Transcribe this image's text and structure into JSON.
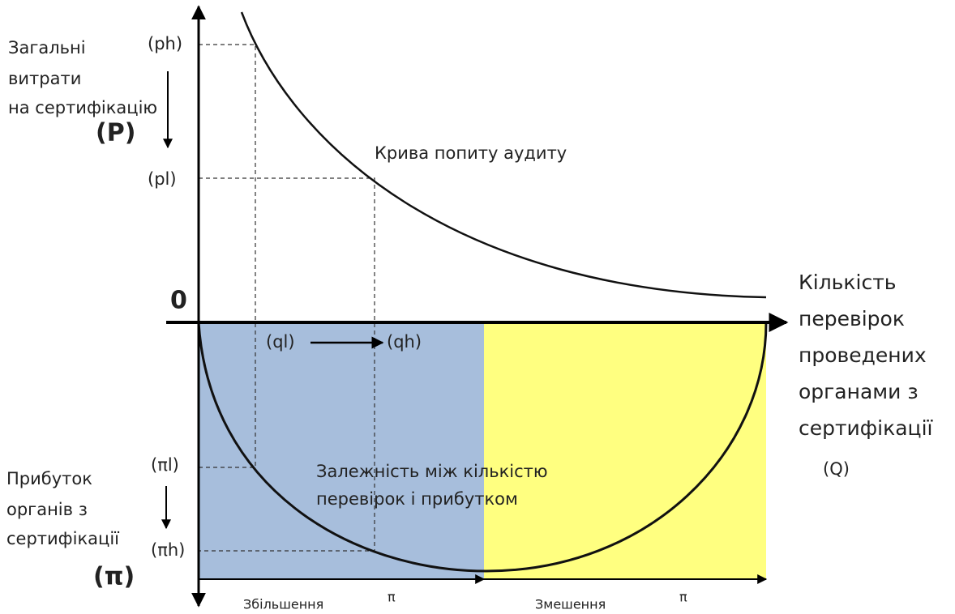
{
  "price_axis": {
    "label": [
      "Загальні",
      "витрати",
      "на сертифікацію"
    ],
    "symbol": "(P)",
    "high": "(ph)",
    "low": "(pl)"
  },
  "origin": "0",
  "quantity_axis": {
    "label": [
      "Кількість",
      "перевірок",
      "проведених",
      "органами з",
      "сертифікації"
    ],
    "symbol": "(Q)",
    "low": "(ql)",
    "high": "(qh)"
  },
  "profit_axis": {
    "label": [
      "Прибуток",
      "органів з",
      "сертифікації"
    ],
    "symbol": "(π)",
    "low": "(πl)",
    "high": "(πh)"
  },
  "demand_curve": "Крива попиту аудиту",
  "profit_curve": [
    "Залежність між кількістю",
    "перевірок і прибутком"
  ],
  "regions": [
    {
      "name": "Збільшення",
      "symbol": "π"
    },
    {
      "name": "Змешення",
      "symbol": "π"
    }
  ]
}
